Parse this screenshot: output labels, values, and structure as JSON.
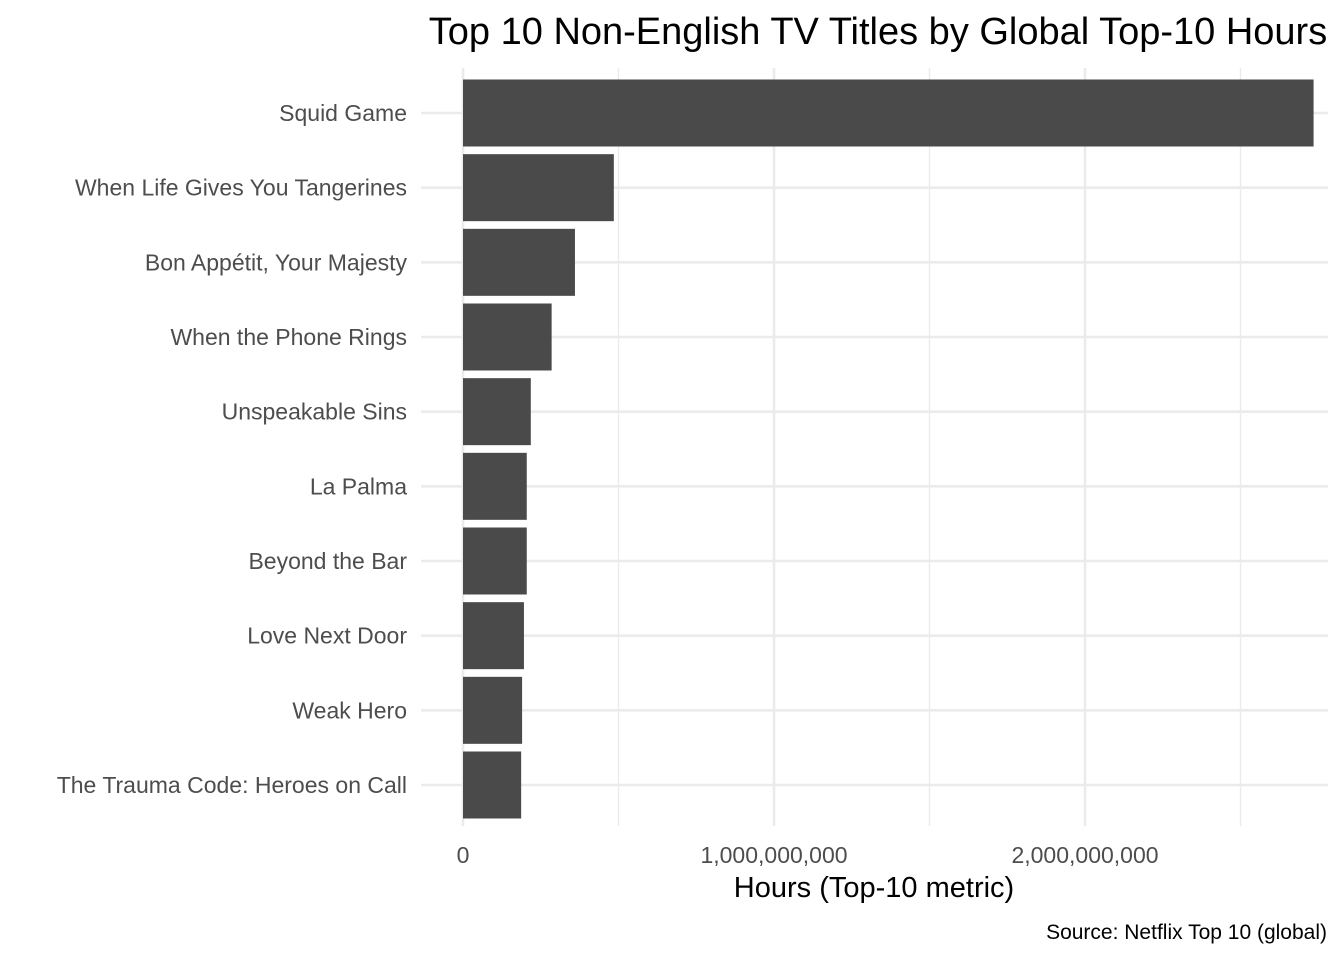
{
  "chart_data": {
    "type": "bar",
    "orientation": "horizontal",
    "title": "Top 10 Non-English TV Titles by Global Top-10 Hours",
    "xlabel": "Hours (Top-10 metric)",
    "ylabel": "",
    "caption": "Source: Netflix Top 10 (global)",
    "categories": [
      "Squid Game",
      "When Life Gives You Tangerines",
      "Bon Appétit, Your Majesty",
      "When the Phone Rings",
      "Unspeakable Sins",
      "La Palma",
      "Beyond the Bar",
      "Love Next Door",
      "Weak Hero",
      "The Trauma Code: Heroes on Call"
    ],
    "values": [
      2735000000,
      485000000,
      360000000,
      285000000,
      218000000,
      205000000,
      205000000,
      196000000,
      190000000,
      187000000
    ],
    "xlim": [
      0,
      2870000000
    ],
    "x_ticks": [
      0,
      1000000000,
      2000000000
    ],
    "x_tick_labels": [
      "0",
      "1,000,000,000",
      "2,000,000,000"
    ],
    "x_minor_ticks": [
      500000000,
      1500000000,
      2500000000
    ],
    "grid": true,
    "bar_color": "#4a4a4a"
  }
}
